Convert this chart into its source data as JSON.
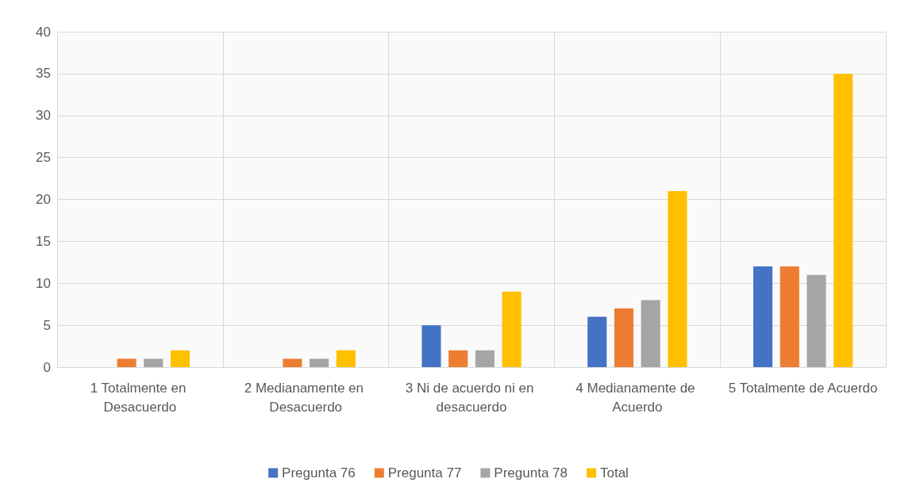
{
  "chart_data": {
    "type": "bar",
    "categories": [
      "1 Totalmente en Desacuerdo",
      "2 Medianamente en Desacuerdo",
      "3 Ni de acuerdo ni en desacuerdo",
      "4 Medianamente de Acuerdo",
      "5 Totalmente de Acuerdo"
    ],
    "series": [
      {
        "name": "Pregunta 76",
        "color": "#4472c4",
        "values": [
          0,
          0,
          5,
          6,
          12
        ]
      },
      {
        "name": "Pregunta 77",
        "color": "#ed7d31",
        "values": [
          1,
          1,
          2,
          7,
          12
        ]
      },
      {
        "name": "Pregunta 78",
        "color": "#a5a5a5",
        "values": [
          1,
          1,
          2,
          8,
          11
        ]
      },
      {
        "name": "Total",
        "color": "#ffc000",
        "values": [
          2,
          2,
          9,
          21,
          35
        ]
      }
    ],
    "ylim": [
      0,
      40
    ],
    "yticks": [
      0,
      5,
      10,
      15,
      20,
      25,
      30,
      35,
      40
    ],
    "grid": true,
    "legend": "bottom"
  }
}
